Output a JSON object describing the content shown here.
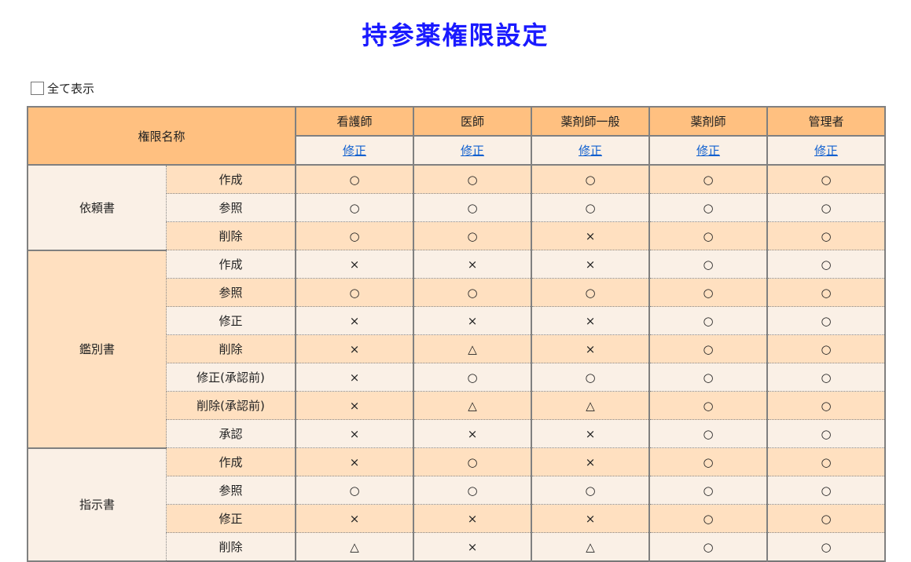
{
  "title": "持参薬権限設定",
  "show_all": {
    "label": "全て表示",
    "checked": false
  },
  "header": {
    "name_col": "権限名称",
    "roles": [
      "看護師",
      "医師",
      "薬剤師一般",
      "薬剤師",
      "管理者"
    ],
    "edit_label": "修正"
  },
  "groups": [
    {
      "name": "依頼書",
      "rows": [
        {
          "label": "作成",
          "values": [
            "○",
            "○",
            "○",
            "○",
            "○"
          ]
        },
        {
          "label": "参照",
          "values": [
            "○",
            "○",
            "○",
            "○",
            "○"
          ]
        },
        {
          "label": "削除",
          "values": [
            "○",
            "○",
            "×",
            "○",
            "○"
          ]
        }
      ]
    },
    {
      "name": "鑑別書",
      "rows": [
        {
          "label": "作成",
          "values": [
            "×",
            "×",
            "×",
            "○",
            "○"
          ]
        },
        {
          "label": "参照",
          "values": [
            "○",
            "○",
            "○",
            "○",
            "○"
          ]
        },
        {
          "label": "修正",
          "values": [
            "×",
            "×",
            "×",
            "○",
            "○"
          ]
        },
        {
          "label": "削除",
          "values": [
            "×",
            "△",
            "×",
            "○",
            "○"
          ]
        },
        {
          "label": "修正(承認前)",
          "values": [
            "×",
            "○",
            "○",
            "○",
            "○"
          ]
        },
        {
          "label": "削除(承認前)",
          "values": [
            "×",
            "△",
            "△",
            "○",
            "○"
          ]
        },
        {
          "label": "承認",
          "values": [
            "×",
            "×",
            "×",
            "○",
            "○"
          ]
        }
      ]
    },
    {
      "name": "指示書",
      "rows": [
        {
          "label": "作成",
          "values": [
            "×",
            "○",
            "×",
            "○",
            "○"
          ]
        },
        {
          "label": "参照",
          "values": [
            "○",
            "○",
            "○",
            "○",
            "○"
          ]
        },
        {
          "label": "修正",
          "values": [
            "×",
            "×",
            "×",
            "○",
            "○"
          ]
        },
        {
          "label": "削除",
          "values": [
            "△",
            "×",
            "△",
            "○",
            "○"
          ]
        }
      ]
    }
  ]
}
